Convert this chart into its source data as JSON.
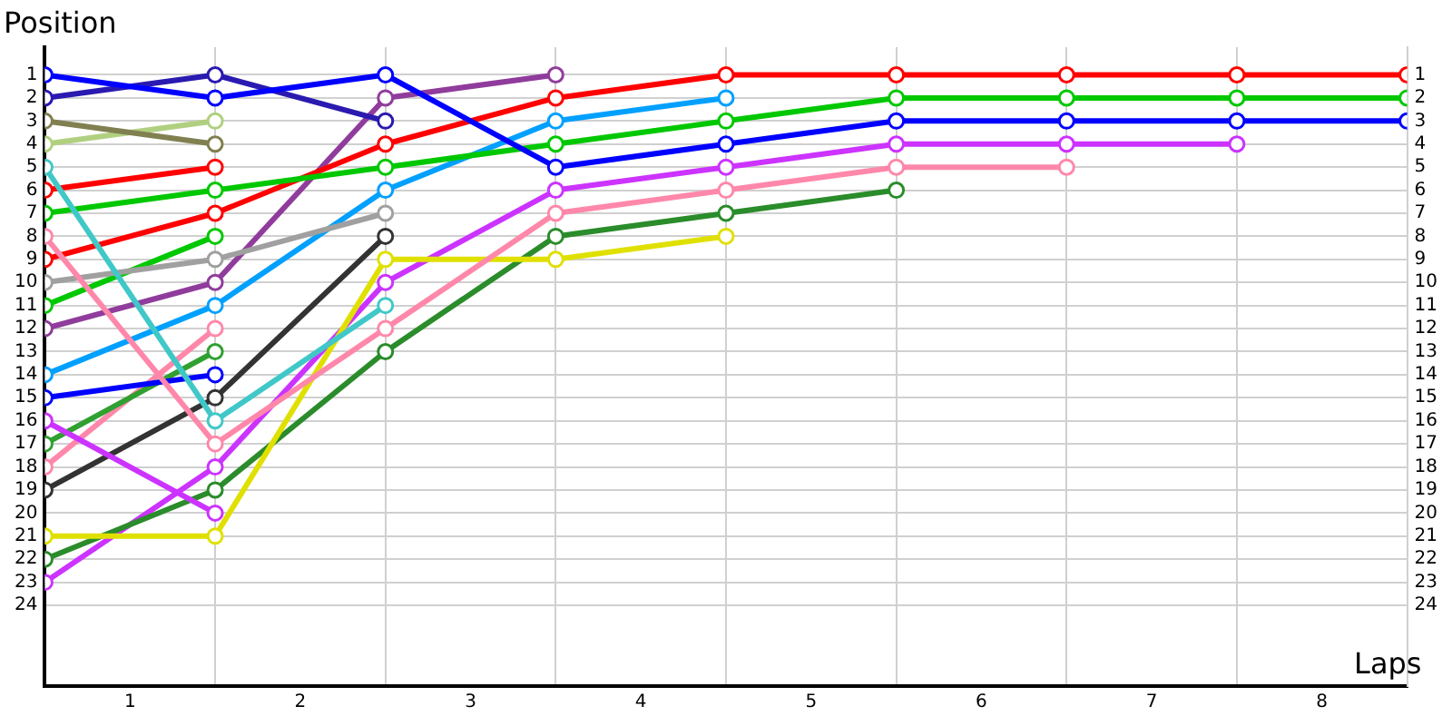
{
  "chart_data": {
    "type": "line",
    "xlabel": "Laps",
    "ylabel": "Position",
    "x": [
      0,
      1,
      2,
      3,
      4,
      5,
      6,
      7,
      8
    ],
    "series": [
      {
        "color": "#0000ff",
        "values": [
          1,
          2,
          1,
          5,
          4,
          3,
          3,
          3,
          3
        ]
      },
      {
        "color": "#2a1ab0",
        "values": [
          2,
          1,
          3,
          null,
          null,
          null,
          null,
          null,
          null
        ]
      },
      {
        "color": "#808050",
        "values": [
          3,
          4,
          null,
          null,
          null,
          null,
          null,
          null,
          null
        ]
      },
      {
        "color": "#b0d080",
        "values": [
          4,
          3,
          null,
          null,
          null,
          null,
          null,
          null,
          null
        ]
      },
      {
        "color": "#40c8c8",
        "values": [
          5,
          16,
          11,
          null,
          null,
          null,
          null,
          null,
          null
        ]
      },
      {
        "color": "#ff0000",
        "values": [
          6,
          5,
          null,
          null,
          null,
          null,
          null,
          null,
          null
        ]
      },
      {
        "color": "#00c800",
        "values": [
          7,
          6,
          5,
          4,
          3,
          2,
          2,
          2,
          2
        ]
      },
      {
        "color": "#ff88aa",
        "values": [
          8,
          17,
          12,
          7,
          6,
          5,
          5,
          null,
          null
        ]
      },
      {
        "color": "#ff0000",
        "values": [
          9,
          7,
          4,
          2,
          1,
          1,
          1,
          1,
          1
        ]
      },
      {
        "color": "#a0a0a0",
        "values": [
          10,
          9,
          7,
          null,
          null,
          null,
          null,
          null,
          null
        ]
      },
      {
        "color": "#00c800",
        "values": [
          11,
          8,
          null,
          null,
          null,
          null,
          null,
          null,
          null
        ]
      },
      {
        "color": "#903c9c",
        "values": [
          12,
          10,
          2,
          1,
          null,
          null,
          null,
          null,
          null
        ]
      },
      {
        "color": "#00a0ff",
        "values": [
          14,
          11,
          6,
          3,
          2,
          null,
          null,
          null,
          null
        ]
      },
      {
        "color": "#0000ff",
        "values": [
          15,
          14,
          null,
          null,
          null,
          null,
          null,
          null,
          null
        ]
      },
      {
        "color": "#cc33ff",
        "values": [
          16,
          20,
          null,
          null,
          null,
          null,
          null,
          null,
          null
        ]
      },
      {
        "color": "#30a030",
        "values": [
          17,
          13,
          null,
          null,
          null,
          null,
          null,
          null,
          null
        ]
      },
      {
        "color": "#ff88aa",
        "values": [
          18,
          12,
          null,
          null,
          null,
          null,
          null,
          null,
          null
        ]
      },
      {
        "color": "#333333",
        "values": [
          19,
          15,
          8,
          null,
          null,
          null,
          null,
          null,
          null
        ]
      },
      {
        "color": "#e0e000",
        "values": [
          21,
          21,
          9,
          9,
          8,
          null,
          null,
          null,
          null
        ]
      },
      {
        "color": "#2a8c2a",
        "values": [
          22,
          19,
          13,
          8,
          7,
          6,
          null,
          null,
          null
        ]
      },
      {
        "color": "#cc33ff",
        "values": [
          23,
          18,
          10,
          6,
          5,
          4,
          4,
          4,
          null
        ]
      }
    ],
    "xlim": [
      0,
      8
    ],
    "xticks": [
      {
        "value": 0.5,
        "label": "1"
      },
      {
        "value": 1,
        "label": null
      },
      {
        "value": 1.5,
        "label": "2"
      },
      {
        "value": 2,
        "label": null
      },
      {
        "value": 2.5,
        "label": "3"
      },
      {
        "value": 3,
        "label": null
      },
      {
        "value": 3.5,
        "label": "4"
      },
      {
        "value": 4,
        "label": null
      },
      {
        "value": 4.5,
        "label": "5"
      },
      {
        "value": 5,
        "label": null
      },
      {
        "value": 5.5,
        "label": "6"
      },
      {
        "value": 6,
        "label": null
      },
      {
        "value": 6.5,
        "label": "7"
      },
      {
        "value": 7,
        "label": null
      },
      {
        "value": 7.5,
        "label": "8"
      },
      {
        "value": 8,
        "label": null
      }
    ],
    "ylim": [
      27.5,
      -0.2
    ],
    "yticks": [
      1,
      2,
      3,
      4,
      5,
      6,
      7,
      8,
      9,
      10,
      11,
      12,
      13,
      14,
      15,
      16,
      17,
      18,
      19,
      20,
      21,
      22,
      23,
      24
    ],
    "y2lim": [
      27.5,
      -0.2
    ],
    "y2ticks": [
      1,
      2,
      3,
      4,
      5,
      6,
      7,
      8,
      9,
      10,
      11,
      12,
      13,
      14,
      15,
      16,
      17,
      18,
      19,
      20,
      21,
      22,
      23,
      24
    ],
    "grid": true,
    "legend": false,
    "marker": "circle",
    "line_style": "solid"
  }
}
